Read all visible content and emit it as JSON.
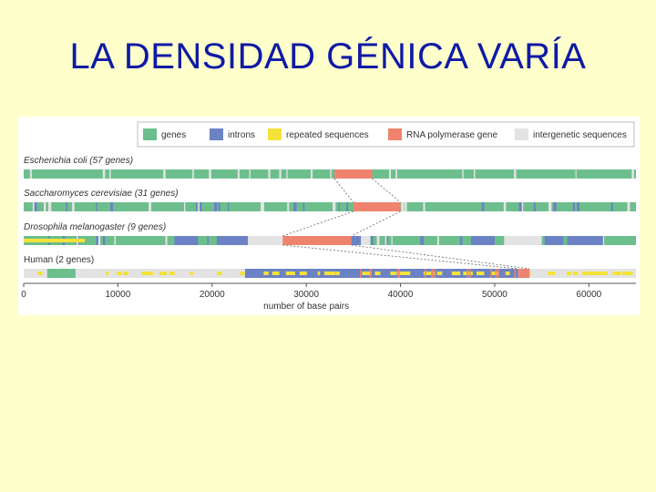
{
  "slide": {
    "title": "LA DENSIDAD GÉNICA VARÍA"
  },
  "legend": [
    {
      "key": "gene",
      "label": "genes",
      "color": "#6cbf8c"
    },
    {
      "key": "intron",
      "label": "introns",
      "color": "#6b82c4"
    },
    {
      "key": "repeat",
      "label": "repeated sequences",
      "color": "#f4e23a"
    },
    {
      "key": "polymerase",
      "label": "RNA polymerase gene",
      "color": "#f0836e"
    },
    {
      "key": "intergenic",
      "label": "intergenetic sequences",
      "color": "#e3e3e3"
    }
  ],
  "tracks": [
    {
      "id": "ecoli",
      "label": "Escherichia coli (57 genes)",
      "base": "gene",
      "segments": [
        {
          "type": "polymerase",
          "start": 33000,
          "end": 37000
        }
      ],
      "stripes": {
        "type": "intergenic",
        "count": 22,
        "width": 180,
        "seed": 3
      }
    },
    {
      "id": "yeast",
      "label": "Saccharomyces cerevisiae (31 genes)",
      "base": "gene",
      "segments": [
        {
          "type": "polymerase",
          "start": 35000,
          "end": 40000
        }
      ],
      "stripes": {
        "type": "mix",
        "count": 42,
        "width": 230,
        "seed": 11
      }
    },
    {
      "id": "fly",
      "label": "Drosophila melanogaster (9 genes)",
      "base": "gene",
      "segments": [
        {
          "type": "repeat",
          "start": 0,
          "end": 6500
        },
        {
          "type": "intron",
          "start": 16000,
          "end": 18500
        },
        {
          "type": "intron",
          "start": 20500,
          "end": 23800
        },
        {
          "type": "intergenic",
          "start": 23800,
          "end": 27500
        },
        {
          "type": "polymerase",
          "start": 27500,
          "end": 34800
        },
        {
          "type": "intron",
          "start": 34800,
          "end": 35800
        },
        {
          "type": "intergenic",
          "start": 35800,
          "end": 36800
        },
        {
          "type": "intron",
          "start": 47500,
          "end": 50000
        },
        {
          "type": "intergenic",
          "start": 51000,
          "end": 55000
        },
        {
          "type": "intron",
          "start": 55300,
          "end": 57300
        },
        {
          "type": "intron",
          "start": 57700,
          "end": 61500
        }
      ],
      "stripes": {
        "type": "mix",
        "count": 40,
        "width": 200,
        "seed": 29
      }
    },
    {
      "id": "human",
      "label": "Human (2 genes)",
      "base": "intergenic",
      "segments": [
        {
          "type": "gene",
          "start": 2500,
          "end": 5500
        },
        {
          "type": "intron",
          "start": 23500,
          "end": 52500
        },
        {
          "type": "polymerase",
          "start": 52500,
          "end": 53700
        }
      ],
      "stripes": {
        "type": "repeat",
        "count": 46,
        "width": 600,
        "seed": 47
      }
    }
  ],
  "axis": {
    "min": 0,
    "max": 65000,
    "ticks": [
      0,
      10000,
      20000,
      30000,
      40000,
      50000,
      60000
    ],
    "tick_labels": [
      "0",
      "10000",
      "20000",
      "30000",
      "40000",
      "50000",
      "60000"
    ],
    "label": "number of base pairs"
  },
  "connectors": [
    {
      "from": "ecoli",
      "to": "yeast"
    },
    {
      "from": "yeast",
      "to": "fly"
    },
    {
      "from": "fly",
      "to": "human"
    }
  ]
}
